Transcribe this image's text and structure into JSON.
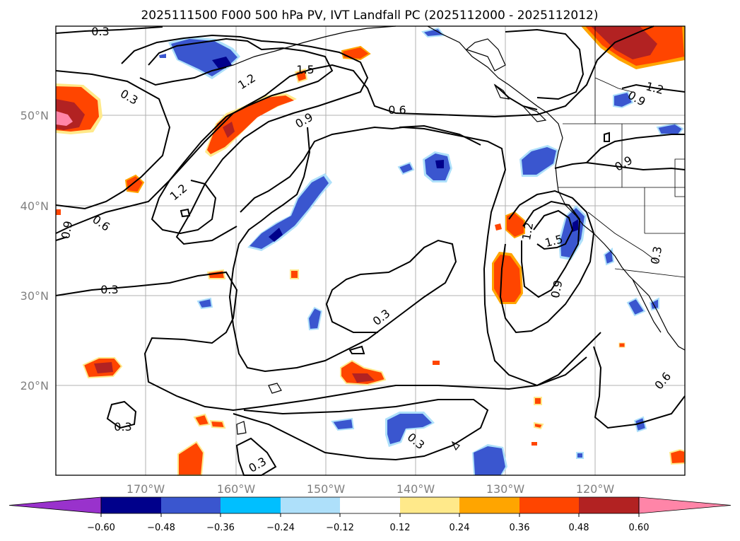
{
  "title": "2025111500 F000 500 hPa PV, IVT Landfall PC (2025112000 - 2025112012)",
  "lat_labels": [
    "50°N",
    "40°N",
    "30°N",
    "20°N"
  ],
  "lon_labels": [
    "170°W",
    "160°W",
    "150°W",
    "140°W",
    "130°W",
    "120°W"
  ],
  "contour_labels": [
    "0.3",
    "1.5",
    "1.2",
    "0.3",
    "0.6",
    "0.9",
    "1.2",
    "0.6",
    "0.9",
    "0.3",
    "0.3",
    "0.3",
    "0.3",
    "0.3",
    "1.2",
    "1.5",
    "0.9",
    "0.9",
    "0.9",
    "0.6",
    "0.3",
    "1.2"
  ],
  "colorbar": {
    "ticks": [
      "−0.60",
      "−0.48",
      "−0.36",
      "−0.24",
      "−0.12",
      "0.12",
      "0.24",
      "0.36",
      "0.48",
      "0.60"
    ],
    "colors": [
      "#9932cc",
      "#00008b",
      "#3a56cf",
      "#00bfff",
      "#aee0fa",
      "#ffffff",
      "#ffe98a",
      "#ffa500",
      "#ff4500",
      "#b22222",
      "#ff85a8"
    ]
  },
  "fill_colors": {
    "neg_light": "#aee0fa",
    "neg_mid": "#00bfff",
    "neg_blue": "#3a56cf",
    "neg_dark": "#00008b",
    "pos_light": "#ffe98a",
    "pos_orange": "#ffa500",
    "pos_red": "#ff4500",
    "pos_dark": "#b22222",
    "pos_pink": "#ff85a8"
  }
}
